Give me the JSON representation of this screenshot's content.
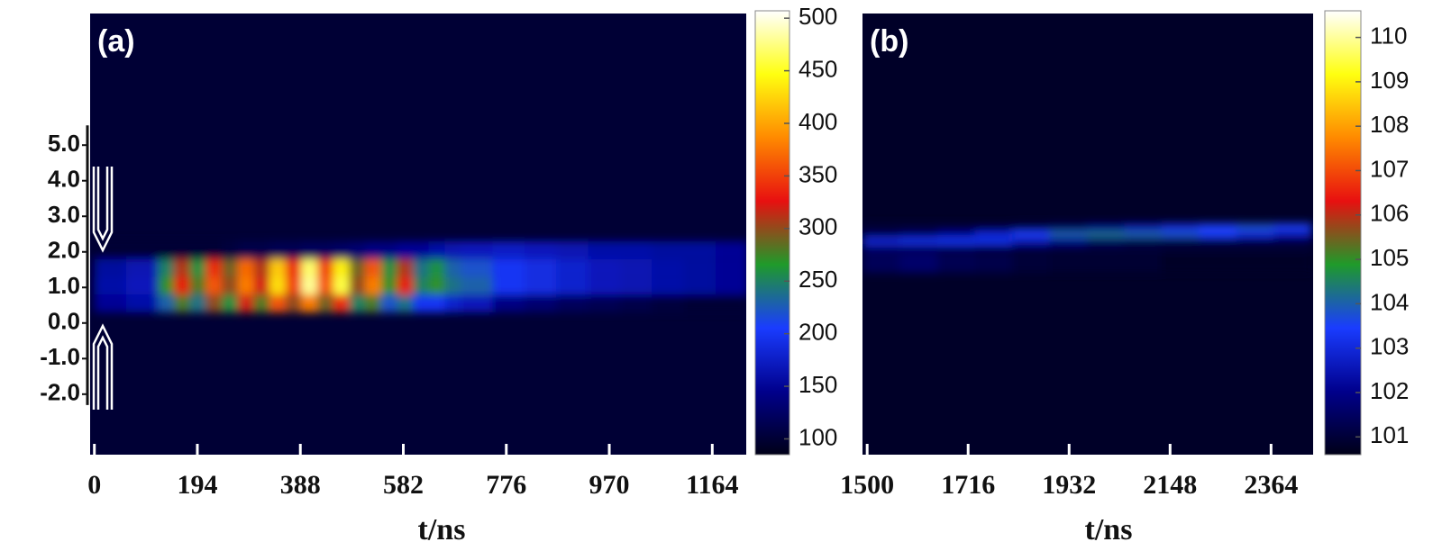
{
  "chart_data": [
    {
      "type": "heatmap",
      "label": "(a)",
      "xlabel": "t/ns",
      "xlim": [
        -8,
        1228
      ],
      "xticks": [
        0,
        194,
        388,
        582,
        776,
        970,
        1164
      ],
      "ylim": [
        -3.7,
        8.7
      ],
      "yticks": [
        {
          "value": -2,
          "label": "-2.0"
        },
        {
          "value": -1,
          "label": "-1.0"
        },
        {
          "value": 0,
          "label": "0.0"
        },
        {
          "value": 1,
          "label": "1.0"
        },
        {
          "value": 2,
          "label": "2.0"
        },
        {
          "value": 3,
          "label": "3.0"
        },
        {
          "value": 4,
          "label": "4.0"
        },
        {
          "value": 5,
          "label": "5.0"
        }
      ],
      "x_bins": [
        0,
        60,
        120,
        150,
        180,
        210,
        240,
        270,
        300,
        330,
        360,
        390,
        420,
        450,
        480,
        510,
        540,
        570,
        600,
        630,
        660,
        690,
        750,
        810,
        870,
        930,
        990,
        1050,
        1110,
        1170,
        1230
      ],
      "y_bins": [
        0.3,
        0.8,
        1.3,
        1.8,
        2.3
      ],
      "z": [
        [
          150,
          160,
          230,
          280,
          240,
          300,
          260,
          320,
          280,
          360,
          300,
          380,
          290,
          340,
          250,
          280,
          220,
          240,
          200,
          200,
          180,
          170,
          140,
          130,
          120,
          115,
          110,
          105,
          100,
          100
        ],
        [
          160,
          170,
          270,
          330,
          280,
          360,
          300,
          380,
          320,
          430,
          350,
          480,
          360,
          460,
          300,
          380,
          270,
          330,
          250,
          270,
          240,
          230,
          200,
          190,
          180,
          170,
          165,
          160,
          155,
          150
        ],
        [
          155,
          165,
          250,
          310,
          260,
          340,
          290,
          370,
          310,
          420,
          340,
          470,
          350,
          440,
          290,
          360,
          260,
          310,
          240,
          260,
          230,
          220,
          200,
          190,
          180,
          170,
          165,
          160,
          155,
          150
        ],
        [
          100,
          100,
          100,
          100,
          100,
          100,
          105,
          110,
          110,
          115,
          115,
          120,
          120,
          125,
          130,
          140,
          140,
          150,
          150,
          160,
          165,
          170,
          175,
          170,
          165,
          160,
          160,
          155,
          155,
          150
        ]
      ],
      "background_value": 100,
      "clim": [
        85,
        507
      ],
      "cticks": [
        100,
        150,
        200,
        250,
        300,
        350,
        400,
        450,
        500
      ],
      "colormap": [
        "#000018",
        "#00008c",
        "#1a3cff",
        "#1f9a2a",
        "#e81010",
        "#ff8a00",
        "#ffff10",
        "#ffffff"
      ]
    },
    {
      "type": "heatmap",
      "label": "(b)",
      "xlabel": "t/ns",
      "xlim": [
        1490,
        2454
      ],
      "xticks": [
        1500,
        1716,
        1932,
        2148,
        2364
      ],
      "ylim": [
        -3.7,
        8.7
      ],
      "x_bins": [
        1490,
        1570,
        1650,
        1730,
        1810,
        1890,
        1970,
        2050,
        2130,
        2210,
        2290,
        2370,
        2450
      ],
      "y_bins": [
        1.4,
        2.0,
        2.2,
        2.4,
        2.6,
        2.8
      ],
      "z": [
        [
          101.4,
          101.6,
          101.3,
          101.2,
          101,
          100.9,
          100.9,
          100.9,
          100.8,
          100.8,
          100.8,
          100.8
        ],
        [
          101.5,
          101.3,
          101.2,
          101,
          101,
          101,
          101,
          101,
          101,
          101,
          101,
          101
        ],
        [
          103,
          103.2,
          103.3,
          103.2,
          102.5,
          102,
          101.5,
          101.2,
          101,
          101,
          101,
          101
        ],
        [
          101.2,
          101.5,
          102,
          102.8,
          103.5,
          104,
          104.2,
          104,
          103.8,
          103.5,
          103,
          102.5
        ],
        [
          101,
          101,
          101,
          101,
          101.2,
          101.5,
          102,
          102.5,
          103,
          103.5,
          103.8,
          103.5
        ]
      ],
      "background_value": 100.8,
      "clim": [
        100.6,
        110.6
      ],
      "cticks": [
        101,
        102,
        103,
        104,
        105,
        106,
        107,
        108,
        109,
        110
      ],
      "colormap": [
        "#000018",
        "#00008c",
        "#1a3cff",
        "#1f9a2a",
        "#e81010",
        "#ff8a00",
        "#ffff10",
        "#ffffff"
      ]
    }
  ]
}
